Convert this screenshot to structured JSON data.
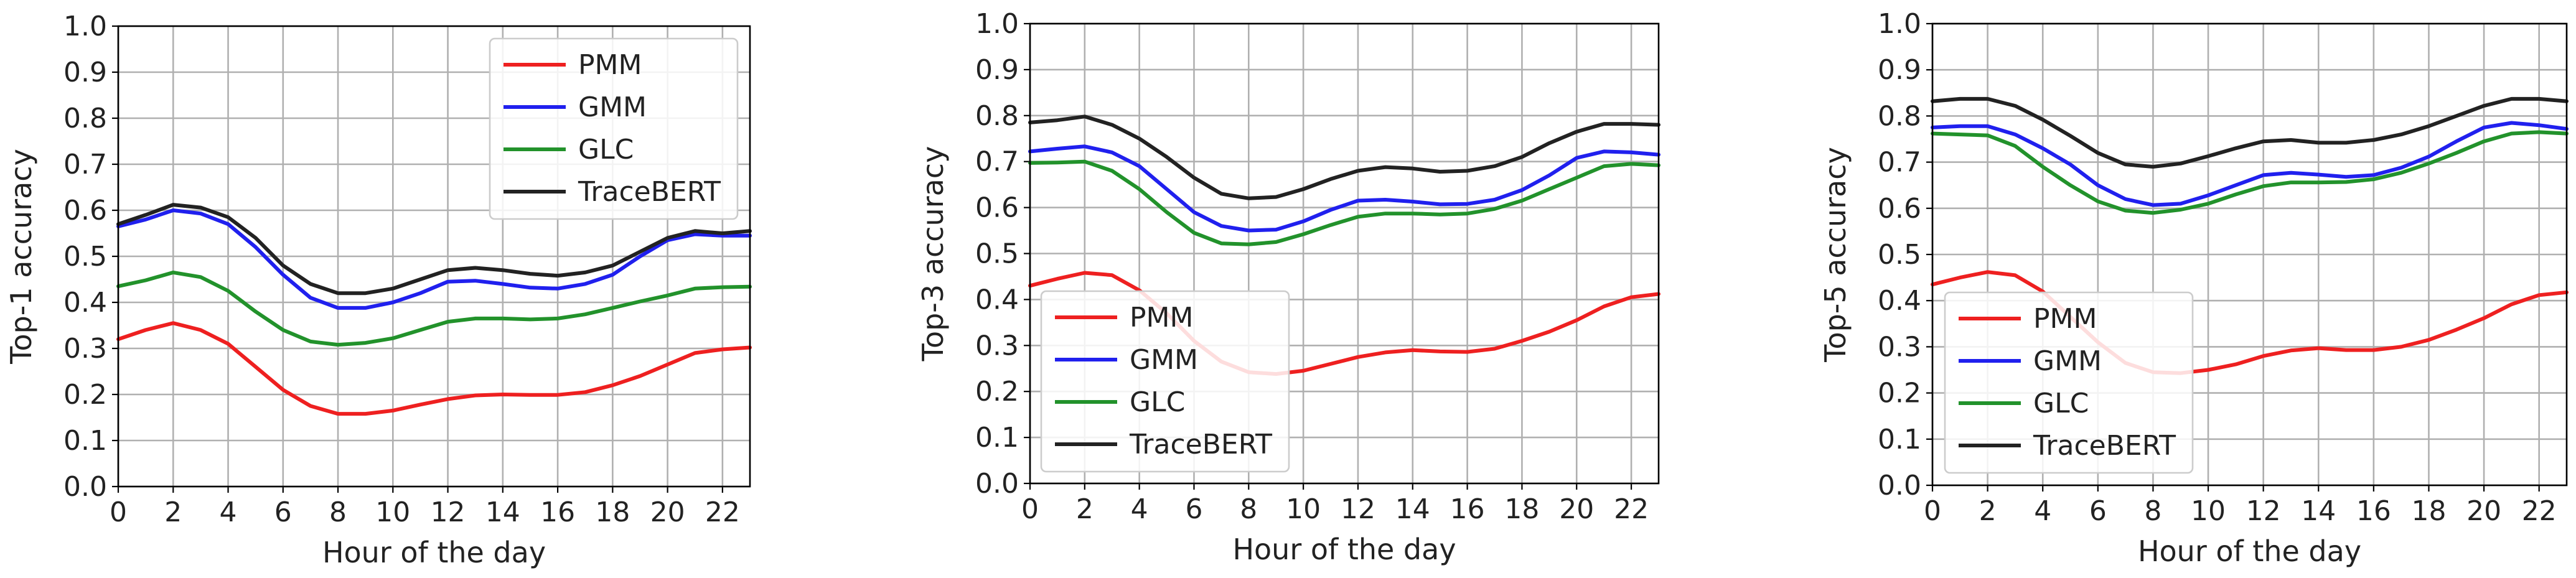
{
  "chart_data": [
    {
      "type": "line",
      "title": "",
      "xlabel": "Hour of the day",
      "ylabel": "Top-1 accuracy",
      "xlim": [
        0,
        23
      ],
      "ylim": [
        0,
        1
      ],
      "x_ticks": [
        "0",
        "2",
        "4",
        "6",
        "8",
        "10",
        "12",
        "14",
        "16",
        "18",
        "20",
        "22"
      ],
      "y_ticks": [
        "0.0",
        "0.1",
        "0.2",
        "0.3",
        "0.4",
        "0.5",
        "0.6",
        "0.7",
        "0.8",
        "0.9",
        "1.0"
      ],
      "grid": true,
      "legend_position": "upper right",
      "x": [
        0,
        1,
        2,
        3,
        4,
        5,
        6,
        7,
        8,
        9,
        10,
        11,
        12,
        13,
        14,
        15,
        16,
        17,
        18,
        19,
        20,
        21,
        22,
        23
      ],
      "series": [
        {
          "name": "PMM",
          "color": "#ee2020",
          "values": [
            0.32,
            0.34,
            0.355,
            0.34,
            0.31,
            0.26,
            0.21,
            0.175,
            0.158,
            0.158,
            0.165,
            0.178,
            0.19,
            0.198,
            0.2,
            0.199,
            0.199,
            0.205,
            0.22,
            0.24,
            0.265,
            0.29,
            0.298,
            0.302
          ]
        },
        {
          "name": "GMM",
          "color": "#2020ee",
          "values": [
            0.565,
            0.58,
            0.6,
            0.593,
            0.57,
            0.52,
            0.46,
            0.41,
            0.388,
            0.388,
            0.4,
            0.42,
            0.445,
            0.447,
            0.44,
            0.432,
            0.43,
            0.44,
            0.46,
            0.5,
            0.535,
            0.548,
            0.545,
            0.545
          ]
        },
        {
          "name": "GLC",
          "color": "#22922b",
          "values": [
            0.435,
            0.448,
            0.465,
            0.455,
            0.425,
            0.38,
            0.34,
            0.315,
            0.308,
            0.312,
            0.322,
            0.34,
            0.358,
            0.365,
            0.365,
            0.363,
            0.365,
            0.374,
            0.388,
            0.402,
            0.415,
            0.43,
            0.433,
            0.434
          ]
        },
        {
          "name": "TraceBERT",
          "color": "#222222",
          "values": [
            0.57,
            0.59,
            0.612,
            0.606,
            0.585,
            0.54,
            0.48,
            0.44,
            0.42,
            0.42,
            0.43,
            0.45,
            0.47,
            0.475,
            0.47,
            0.462,
            0.458,
            0.465,
            0.48,
            0.51,
            0.54,
            0.555,
            0.55,
            0.555
          ]
        }
      ]
    },
    {
      "type": "line",
      "title": "",
      "xlabel": "Hour of the day",
      "ylabel": "Top-3 accuracy",
      "xlim": [
        0,
        23
      ],
      "ylim": [
        0,
        1
      ],
      "x_ticks": [
        "0",
        "2",
        "4",
        "6",
        "8",
        "10",
        "12",
        "14",
        "16",
        "18",
        "20",
        "22"
      ],
      "y_ticks": [
        "0.0",
        "0.1",
        "0.2",
        "0.3",
        "0.4",
        "0.5",
        "0.6",
        "0.7",
        "0.8",
        "0.9",
        "1.0"
      ],
      "grid": true,
      "legend_position": "lower left",
      "x": [
        0,
        1,
        2,
        3,
        4,
        5,
        6,
        7,
        8,
        9,
        10,
        11,
        12,
        13,
        14,
        15,
        16,
        17,
        18,
        19,
        20,
        21,
        22,
        23
      ],
      "series": [
        {
          "name": "PMM",
          "color": "#ee2020",
          "values": [
            0.43,
            0.445,
            0.458,
            0.453,
            0.42,
            0.37,
            0.31,
            0.265,
            0.242,
            0.238,
            0.245,
            0.26,
            0.275,
            0.285,
            0.29,
            0.287,
            0.286,
            0.293,
            0.31,
            0.33,
            0.355,
            0.385,
            0.405,
            0.412
          ]
        },
        {
          "name": "GMM",
          "color": "#2020ee",
          "values": [
            0.722,
            0.728,
            0.733,
            0.72,
            0.69,
            0.64,
            0.59,
            0.56,
            0.55,
            0.552,
            0.57,
            0.595,
            0.615,
            0.617,
            0.613,
            0.607,
            0.608,
            0.617,
            0.638,
            0.67,
            0.708,
            0.722,
            0.72,
            0.715
          ]
        },
        {
          "name": "GLC",
          "color": "#22922b",
          "values": [
            0.697,
            0.698,
            0.7,
            0.68,
            0.64,
            0.59,
            0.545,
            0.522,
            0.52,
            0.525,
            0.542,
            0.562,
            0.58,
            0.587,
            0.587,
            0.585,
            0.587,
            0.597,
            0.615,
            0.64,
            0.665,
            0.69,
            0.695,
            0.692
          ]
        },
        {
          "name": "TraceBERT",
          "color": "#222222",
          "values": [
            0.785,
            0.79,
            0.798,
            0.78,
            0.75,
            0.71,
            0.665,
            0.63,
            0.62,
            0.623,
            0.64,
            0.662,
            0.68,
            0.688,
            0.685,
            0.678,
            0.68,
            0.69,
            0.71,
            0.74,
            0.765,
            0.782,
            0.782,
            0.78
          ]
        }
      ]
    },
    {
      "type": "line",
      "title": "",
      "xlabel": "Hour of the day",
      "ylabel": "Top-5 accuracy",
      "xlim": [
        0,
        23
      ],
      "ylim": [
        0,
        1
      ],
      "x_ticks": [
        "0",
        "2",
        "4",
        "6",
        "8",
        "10",
        "12",
        "14",
        "16",
        "18",
        "20",
        "22"
      ],
      "y_ticks": [
        "0.0",
        "0.1",
        "0.2",
        "0.3",
        "0.4",
        "0.5",
        "0.6",
        "0.7",
        "0.8",
        "0.9",
        "1.0"
      ],
      "grid": true,
      "legend_position": "lower left",
      "x": [
        0,
        1,
        2,
        3,
        4,
        5,
        6,
        7,
        8,
        9,
        10,
        11,
        12,
        13,
        14,
        15,
        16,
        17,
        18,
        19,
        20,
        21,
        22,
        23
      ],
      "series": [
        {
          "name": "PMM",
          "color": "#ee2020",
          "values": [
            0.435,
            0.45,
            0.462,
            0.455,
            0.42,
            0.365,
            0.31,
            0.265,
            0.245,
            0.243,
            0.25,
            0.262,
            0.28,
            0.292,
            0.297,
            0.293,
            0.293,
            0.3,
            0.315,
            0.337,
            0.362,
            0.392,
            0.412,
            0.418
          ]
        },
        {
          "name": "GMM",
          "color": "#2020ee",
          "values": [
            0.775,
            0.778,
            0.778,
            0.76,
            0.73,
            0.695,
            0.65,
            0.62,
            0.607,
            0.61,
            0.628,
            0.65,
            0.672,
            0.677,
            0.673,
            0.668,
            0.672,
            0.688,
            0.712,
            0.745,
            0.775,
            0.785,
            0.78,
            0.772
          ]
        },
        {
          "name": "GLC",
          "color": "#22922b",
          "values": [
            0.762,
            0.76,
            0.758,
            0.735,
            0.69,
            0.65,
            0.615,
            0.595,
            0.59,
            0.597,
            0.61,
            0.63,
            0.648,
            0.656,
            0.656,
            0.657,
            0.663,
            0.677,
            0.697,
            0.72,
            0.745,
            0.762,
            0.765,
            0.762
          ]
        },
        {
          "name": "TraceBERT",
          "color": "#222222",
          "values": [
            0.832,
            0.837,
            0.837,
            0.822,
            0.792,
            0.757,
            0.72,
            0.695,
            0.69,
            0.697,
            0.713,
            0.73,
            0.745,
            0.748,
            0.742,
            0.742,
            0.748,
            0.76,
            0.778,
            0.8,
            0.822,
            0.837,
            0.837,
            0.832
          ]
        }
      ]
    }
  ]
}
